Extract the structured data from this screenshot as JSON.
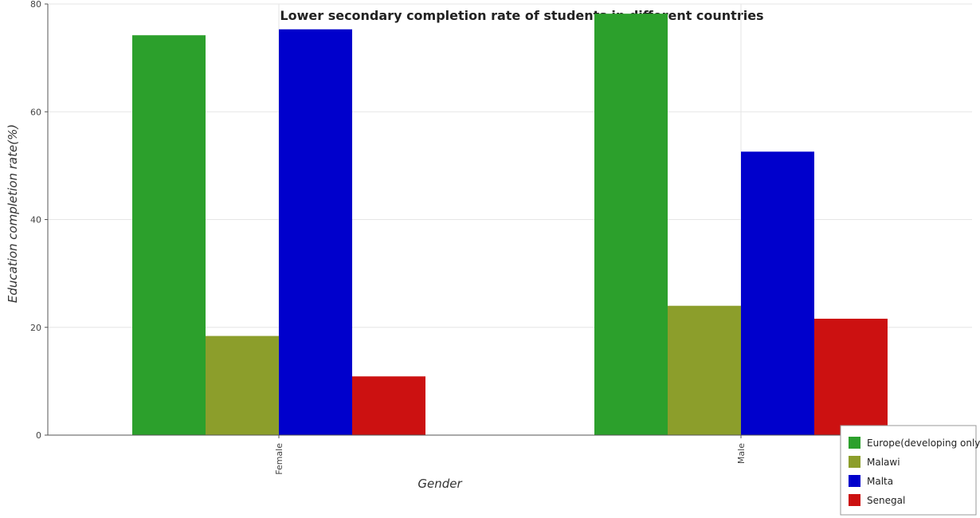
{
  "chart_data": {
    "type": "bar",
    "title": "Lower secondary completion rate of students in different countries",
    "xlabel": "Gender",
    "ylabel": "Education completion rate(%)",
    "categories": [
      "Female",
      "Male"
    ],
    "ylim": [
      0,
      80
    ],
    "yticks": [
      0,
      20,
      40,
      60,
      80
    ],
    "grid": true,
    "legend_position": "bottom-right",
    "series": [
      {
        "name": "Europe(developing only)",
        "color": "#2ca02c",
        "values": [
          74.2,
          78.2
        ]
      },
      {
        "name": "Malawi",
        "color": "#8c9e2b",
        "values": [
          18.4,
          24.0
        ]
      },
      {
        "name": "Malta",
        "color": "#0000cc",
        "values": [
          75.3,
          52.6
        ]
      },
      {
        "name": "Senegal",
        "color": "#cc1111",
        "values": [
          10.9,
          21.6
        ]
      }
    ]
  }
}
